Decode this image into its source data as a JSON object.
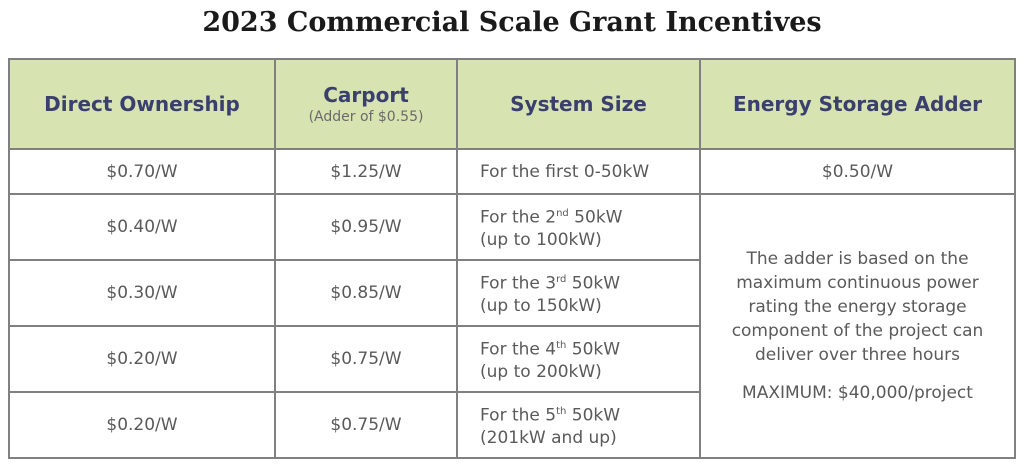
{
  "title": "2023 Commercial Scale Grant Incentives",
  "headers": {
    "direct_ownership": "Direct Ownership",
    "carport": "Carport",
    "carport_note": "(Adder of $0.55)",
    "system_size": "System Size",
    "energy_storage": "Energy Storage Adder"
  },
  "rows": [
    {
      "direct": "$0.70/W",
      "carport": "$1.25/W",
      "size_pre": "For the first 0-50kW",
      "size_sup": "",
      "size_post": "",
      "size_line2": ""
    },
    {
      "direct": "$0.40/W",
      "carport": "$0.95/W",
      "size_pre": "For the 2",
      "size_sup": "nd",
      "size_post": " 50kW",
      "size_line2": "(up to 100kW)"
    },
    {
      "direct": "$0.30/W",
      "carport": "$0.85/W",
      "size_pre": "For the 3",
      "size_sup": "rd",
      "size_post": " 50kW",
      "size_line2": "(up to 150kW)"
    },
    {
      "direct": "$0.20/W",
      "carport": "$0.75/W",
      "size_pre": "For the 4",
      "size_sup": "th",
      "size_post": " 50kW",
      "size_line2": "(up to 200kW)"
    },
    {
      "direct": "$0.20/W",
      "carport": "$0.75/W",
      "size_pre": "For the 5",
      "size_sup": "th",
      "size_post": " 50kW",
      "size_line2": "(201kW and up)"
    }
  ],
  "storage": {
    "first_row": "$0.50/W",
    "note": "The adder is based on the maximum continuous power rating the energy storage component of the project can deliver over three hours",
    "maximum": "MAXIMUM: $40,000/project"
  },
  "colors": {
    "header_bg": "#d8e3b2",
    "header_text": "#3a3f6e",
    "border": "#808080"
  }
}
